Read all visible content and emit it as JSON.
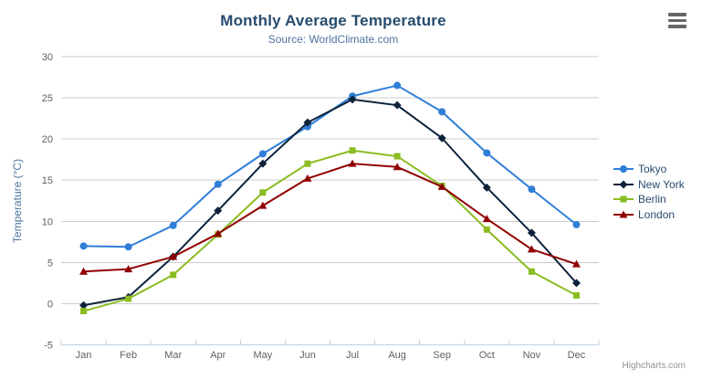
{
  "chart_data": {
    "type": "line",
    "title": "Monthly Average Temperature",
    "subtitle": "Source: WorldClimate.com",
    "xlabel": "",
    "ylabel": "Temperature (°C)",
    "categories": [
      "Jan",
      "Feb",
      "Mar",
      "Apr",
      "May",
      "Jun",
      "Jul",
      "Aug",
      "Sep",
      "Oct",
      "Nov",
      "Dec"
    ],
    "ylim": [
      -5,
      30
    ],
    "y_tick_interval": 5,
    "grid": true,
    "legend_position": "right",
    "series": [
      {
        "name": "Tokyo",
        "color": "#2f7ed8",
        "marker": "circle",
        "values": [
          7.0,
          6.9,
          9.5,
          14.5,
          18.2,
          21.5,
          25.2,
          26.5,
          23.3,
          18.3,
          13.9,
          9.6
        ]
      },
      {
        "name": "New York",
        "color": "#0d233a",
        "marker": "diamond",
        "values": [
          -0.2,
          0.8,
          5.7,
          11.3,
          17.0,
          22.0,
          24.8,
          24.1,
          20.1,
          14.1,
          8.6,
          2.5
        ]
      },
      {
        "name": "Berlin",
        "color": "#8bbc21",
        "marker": "square",
        "values": [
          -0.9,
          0.6,
          3.5,
          8.4,
          13.5,
          17.0,
          18.6,
          17.9,
          14.3,
          9.0,
          3.9,
          1.0
        ]
      },
      {
        "name": "London",
        "color": "#910000",
        "marker": "triangle",
        "values": [
          3.9,
          4.2,
          5.7,
          8.5,
          11.9,
          15.2,
          17.0,
          16.6,
          14.2,
          10.3,
          6.6,
          4.8
        ]
      }
    ],
    "credits": "Highcharts.com"
  },
  "colors": {
    "title": "#274b6d",
    "subtitle": "#4d759e",
    "axis_title": "#4d759e",
    "axis_label": "#606060",
    "grid_line": "#cccccc",
    "axis_line": "#c0d0e0",
    "legend_text": "#274b6d",
    "credits": "#909090",
    "menu_icon": "#666666",
    "background": "#ffffff"
  }
}
